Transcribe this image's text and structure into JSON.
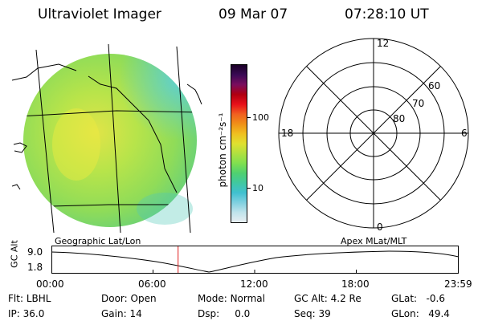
{
  "header": {
    "title": "Ultraviolet Imager",
    "date": "09 Mar 07",
    "time": "07:28:10 UT"
  },
  "colorbar": {
    "unit_label": "photon cm⁻²s⁻¹",
    "ticks": [
      "100",
      "10"
    ],
    "colors_top_to_bottom": [
      "#1a0026",
      "#3a0a55",
      "#7a0d5e",
      "#b00010",
      "#e8101a",
      "#f06020",
      "#f09018",
      "#f0c020",
      "#e0e030",
      "#b0e040",
      "#80e050",
      "#50d070",
      "#40c8a0",
      "#40c0d0",
      "#80d0e0",
      "#c0e4ec",
      "#e8eef2"
    ]
  },
  "polar_plot": {
    "labels": {
      "top": "12",
      "left": "18",
      "right": "6",
      "bottom": "0"
    },
    "lat_labels": [
      "60",
      "70",
      "80"
    ]
  },
  "altitude_plot": {
    "left_title": "Geographic Lat/Lon",
    "right_title": "Apex MLat/MLT",
    "ylabel": "GC Alt",
    "yticks": [
      "9.0",
      "1.8"
    ],
    "xticks": [
      "00:00",
      "06:00",
      "12:00",
      "18:00",
      "23:59"
    ],
    "marker_time": "07:28",
    "marker_color": "#e02020"
  },
  "status": {
    "row1": [
      {
        "label": "Flt:",
        "value": "LBHL"
      },
      {
        "label": "Door:",
        "value": "Open"
      },
      {
        "label": "Mode:",
        "value": "Normal"
      },
      {
        "label": "GC Alt:",
        "value": "4.2 Re"
      },
      {
        "label": "GLat:",
        "value": "-0.6"
      }
    ],
    "row2": [
      {
        "label": "IP:",
        "value": "36.0"
      },
      {
        "label": "Gain:",
        "value": "14"
      },
      {
        "label": "Dsp:",
        "value": "0.0"
      },
      {
        "label": "Seq:",
        "value": "39"
      },
      {
        "label": "GLon:",
        "value": "49.4"
      }
    ]
  }
}
